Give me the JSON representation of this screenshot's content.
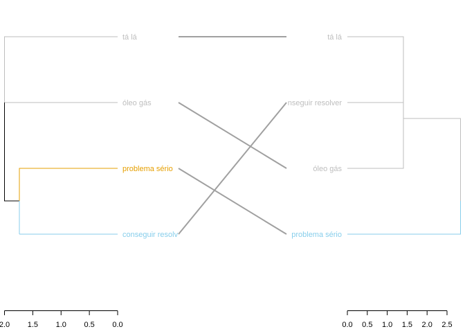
{
  "colors": {
    "background": "#ffffff",
    "gray_branch": "#bebebe",
    "root_branch": "#000000",
    "orange": "#e69f00",
    "blue": "#87ceeb",
    "connector": "#a0a0a0"
  },
  "left_tree": {
    "leaves": [
      {
        "label": "tá lá",
        "color": "#bebebe"
      },
      {
        "label": "óleo gás",
        "color": "#bebebe"
      },
      {
        "label": "problema sério",
        "color": "#e69f00"
      },
      {
        "label": "conseguir resolv",
        "color": "#87ceeb"
      }
    ],
    "axis_ticks": [
      "2.0",
      "1.5",
      "1.0",
      "0.5",
      "0.0"
    ],
    "axis_values": [
      2.0,
      1.5,
      1.0,
      0.5,
      0.0
    ]
  },
  "right_tree": {
    "leaves": [
      {
        "label": "tá lá",
        "color": "#bebebe"
      },
      {
        "label": "nseguir resolver",
        "color": "#bebebe"
      },
      {
        "label": "óleo gás",
        "color": "#bebebe"
      },
      {
        "label": "problema sério",
        "color": "#87ceeb"
      }
    ],
    "axis_ticks": [
      "0.0",
      "0.5",
      "1.0",
      "1.5",
      "2.0",
      "2.5"
    ],
    "axis_values": [
      0.0,
      0.5,
      1.0,
      1.5,
      2.0,
      2.5
    ]
  },
  "connections": [
    {
      "from": "tá lá",
      "to": "tá lá"
    },
    {
      "from": "óleo gás",
      "to": "óleo gás"
    },
    {
      "from": "problema sério",
      "to": "problema sério"
    },
    {
      "from": "conseguir resolv",
      "to": "nseguir resolver"
    }
  ]
}
